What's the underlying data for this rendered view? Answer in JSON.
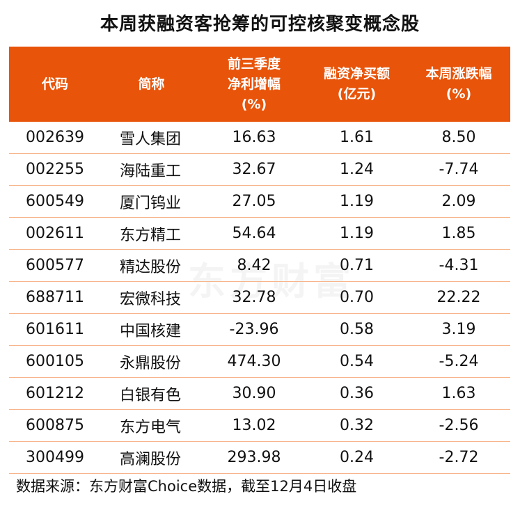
{
  "title": "本周获融资客抢筹的可控核聚变概念股",
  "watermark": "东方财富",
  "colors": {
    "header_bg": "#E8540A",
    "header_text": "#FFFFFF",
    "row_divider": "#F8B48A"
  },
  "chart_data": {
    "type": "table",
    "title": "本周获融资客抢筹的可控核聚变概念股",
    "columns": [
      "代码",
      "简称",
      "前三季度\n净利增幅\n(%)",
      "融资净买额\n(亿元)",
      "本周涨跌幅\n(%)"
    ],
    "rows": [
      [
        "002639",
        "雪人集团",
        "16.63",
        "1.61",
        "8.50"
      ],
      [
        "002255",
        "海陆重工",
        "32.67",
        "1.24",
        "-7.74"
      ],
      [
        "600549",
        "厦门钨业",
        "27.05",
        "1.19",
        "2.09"
      ],
      [
        "002611",
        "东方精工",
        "54.64",
        "1.19",
        "1.85"
      ],
      [
        "600577",
        "精达股份",
        "8.42",
        "0.71",
        "-4.31"
      ],
      [
        "688711",
        "宏微科技",
        "32.78",
        "0.70",
        "22.22"
      ],
      [
        "601611",
        "中国核建",
        "-23.96",
        "0.58",
        "3.19"
      ],
      [
        "600105",
        "永鼎股份",
        "474.30",
        "0.54",
        "-5.24"
      ],
      [
        "601212",
        "白银有色",
        "30.90",
        "0.36",
        "1.63"
      ],
      [
        "600875",
        "东方电气",
        "13.02",
        "0.32",
        "-2.56"
      ],
      [
        "300499",
        "高澜股份",
        "293.98",
        "0.24",
        "-2.72"
      ]
    ]
  },
  "source": "数据来源：东方财富Choice数据，截至12月4日收盘"
}
